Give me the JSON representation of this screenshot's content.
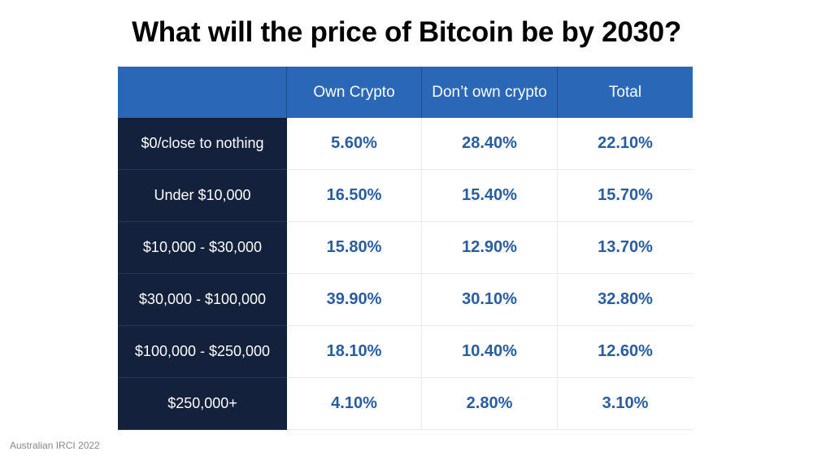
{
  "title": "What will the price of Bitcoin be by 2030?",
  "source": "Australian IRCI 2022",
  "columns": [
    "",
    "Own Crypto",
    "Don’t own crypto",
    "Total"
  ],
  "rows": [
    {
      "label": "$0/close to nothing",
      "values": [
        "5.60%",
        "28.40%",
        "22.10%"
      ]
    },
    {
      "label": "Under $10,000",
      "values": [
        "16.50%",
        "15.40%",
        "15.70%"
      ]
    },
    {
      "label": "$10,000 - $30,000",
      "values": [
        "15.80%",
        "12.90%",
        "13.70%"
      ]
    },
    {
      "label": "$30,000 - $100,000",
      "values": [
        "39.90%",
        "30.10%",
        "32.80%"
      ]
    },
    {
      "label": "$100,000 - $250,000",
      "values": [
        "18.10%",
        "10.40%",
        "12.60%"
      ]
    },
    {
      "label": "$250,000+",
      "values": [
        "4.10%",
        "2.80%",
        "3.10%"
      ]
    }
  ],
  "colors": {
    "header_bg": "#2a67b6",
    "row_label_bg": "#14213d",
    "value_text": "#2a5d9f"
  },
  "chart_data": {
    "type": "table",
    "title": "What will the price of Bitcoin be by 2030?",
    "columns": [
      "Own Crypto",
      "Don’t own crypto",
      "Total"
    ],
    "categories": [
      "$0/close to nothing",
      "Under $10,000",
      "$10,000 - $30,000",
      "$30,000 - $100,000",
      "$100,000 - $250,000",
      "$250,000+"
    ],
    "series": [
      {
        "name": "Own Crypto",
        "values": [
          5.6,
          16.5,
          15.8,
          39.9,
          18.1,
          4.1
        ]
      },
      {
        "name": "Don’t own crypto",
        "values": [
          28.4,
          15.4,
          12.9,
          30.1,
          10.4,
          2.8
        ]
      },
      {
        "name": "Total",
        "values": [
          22.1,
          15.7,
          13.7,
          32.8,
          12.6,
          3.1
        ]
      }
    ],
    "unit": "%"
  }
}
